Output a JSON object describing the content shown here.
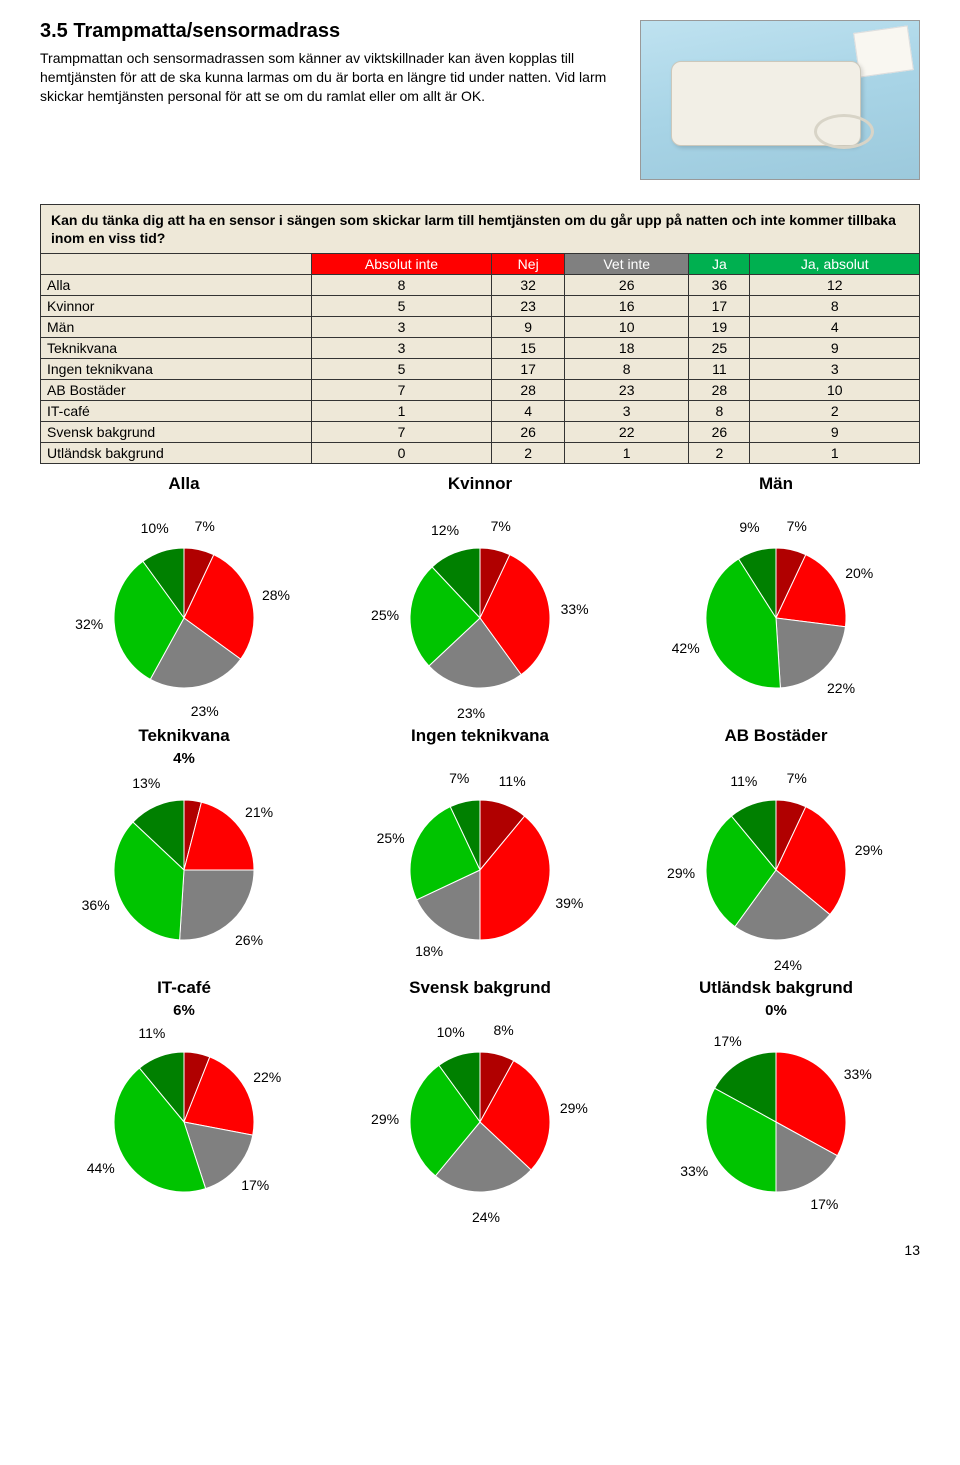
{
  "heading": "3.5 Trampmatta/sensormadrass",
  "intro_text": "Trampmattan och sensormadrassen som känner av viktskillnader kan även kopplas till hemtjänsten för att de ska kunna larmas om du är borta en längre tid under natten. Vid larm skickar hemtjänsten personal för att se om du ramlat eller om allt är OK.",
  "table": {
    "question": "Kan du tänka dig att ha en sensor i sängen som skickar larm till hemtjänsten om du går upp på natten och inte kommer tillbaka inom en viss tid?",
    "header_labels": [
      "Absolut inte",
      "Nej",
      "Vet inte",
      "Ja",
      "Ja, absolut"
    ],
    "header_colors": [
      "h-red",
      "h-red",
      "h-gray",
      "h-green",
      "h-green"
    ],
    "rows": [
      {
        "label": "Alla",
        "vals": [
          8,
          32,
          26,
          36,
          12
        ]
      },
      {
        "label": "Kvinnor",
        "vals": [
          5,
          23,
          16,
          17,
          8
        ]
      },
      {
        "label": "Män",
        "vals": [
          3,
          9,
          10,
          19,
          4
        ]
      },
      {
        "label": "Teknikvana",
        "vals": [
          3,
          15,
          18,
          25,
          9
        ]
      },
      {
        "label": "Ingen teknikvana",
        "vals": [
          5,
          17,
          8,
          11,
          3
        ]
      },
      {
        "label": "AB Bostäder",
        "vals": [
          7,
          28,
          23,
          28,
          10
        ]
      },
      {
        "label": "IT-café",
        "vals": [
          1,
          4,
          3,
          8,
          2
        ]
      },
      {
        "label": "Svensk bakgrund",
        "vals": [
          7,
          26,
          22,
          26,
          9
        ]
      },
      {
        "label": "Utländsk bakgrund",
        "vals": [
          0,
          2,
          1,
          2,
          1
        ]
      }
    ]
  },
  "pie_colors": {
    "ja_absolut": "#008000",
    "ja": "#00c400",
    "vet_inte": "#808080",
    "nej": "#ff0000",
    "absolut_inte": "#b00000"
  },
  "pie_radius": 70,
  "pie_label_offset": 95,
  "pie_label_fontsize": 14,
  "pie_title_fontsize": 17,
  "pies": [
    {
      "title": "Alla",
      "sub": "",
      "slices": [
        {
          "label": "10%",
          "value": 10,
          "color_key": "ja_absolut"
        },
        {
          "label": "7%",
          "value": 7,
          "color_key": "absolut_inte"
        },
        {
          "label": "28%",
          "value": 28,
          "color_key": "nej"
        },
        {
          "label": "23%",
          "value": 23,
          "color_key": "vet_inte"
        },
        {
          "label": "32%",
          "value": 32,
          "color_key": "ja"
        }
      ]
    },
    {
      "title": "Kvinnor",
      "sub": "",
      "slices": [
        {
          "label": "12%",
          "value": 12,
          "color_key": "ja_absolut"
        },
        {
          "label": "7%",
          "value": 7,
          "color_key": "absolut_inte"
        },
        {
          "label": "33%",
          "value": 33,
          "color_key": "nej"
        },
        {
          "label": "23%",
          "value": 23,
          "color_key": "vet_inte"
        },
        {
          "label": "25%",
          "value": 25,
          "color_key": "ja"
        }
      ]
    },
    {
      "title": "Män",
      "sub": "",
      "slices": [
        {
          "label": "9%",
          "value": 9,
          "color_key": "ja_absolut"
        },
        {
          "label": "7%",
          "value": 7,
          "color_key": "absolut_inte"
        },
        {
          "label": "20%",
          "value": 20,
          "color_key": "nej"
        },
        {
          "label": "22%",
          "value": 22,
          "color_key": "vet_inte"
        },
        {
          "label": "42%",
          "value": 42,
          "color_key": "ja"
        }
      ]
    },
    {
      "title": "Teknikvana",
      "sub": "4%",
      "slices": [
        {
          "label": "13%",
          "value": 13,
          "color_key": "ja_absolut"
        },
        {
          "label": "",
          "value": 4,
          "color_key": "absolut_inte"
        },
        {
          "label": "21%",
          "value": 21,
          "color_key": "nej"
        },
        {
          "label": "26%",
          "value": 26,
          "color_key": "vet_inte"
        },
        {
          "label": "36%",
          "value": 36,
          "color_key": "ja"
        }
      ]
    },
    {
      "title": "Ingen teknikvana",
      "sub": "",
      "slices": [
        {
          "label": "7%",
          "value": 7,
          "color_key": "ja_absolut"
        },
        {
          "label": "11%",
          "value": 11,
          "color_key": "absolut_inte"
        },
        {
          "label": "39%",
          "value": 39,
          "color_key": "nej"
        },
        {
          "label": "18%",
          "value": 18,
          "color_key": "vet_inte"
        },
        {
          "label": "25%",
          "value": 25,
          "color_key": "ja"
        }
      ]
    },
    {
      "title": "AB Bostäder",
      "sub": "",
      "slices": [
        {
          "label": "11%",
          "value": 11,
          "color_key": "ja_absolut"
        },
        {
          "label": "7%",
          "value": 7,
          "color_key": "absolut_inte"
        },
        {
          "label": "29%",
          "value": 29,
          "color_key": "nej"
        },
        {
          "label": "24%",
          "value": 24,
          "color_key": "vet_inte"
        },
        {
          "label": "29%",
          "value": 29,
          "color_key": "ja"
        }
      ]
    },
    {
      "title": "IT-café",
      "sub": "6%",
      "slices": [
        {
          "label": "11%",
          "value": 11,
          "color_key": "ja_absolut"
        },
        {
          "label": "",
          "value": 6,
          "color_key": "absolut_inte"
        },
        {
          "label": "22%",
          "value": 22,
          "color_key": "nej"
        },
        {
          "label": "17%",
          "value": 17,
          "color_key": "vet_inte"
        },
        {
          "label": "44%",
          "value": 44,
          "color_key": "ja"
        }
      ]
    },
    {
      "title": "Svensk bakgrund",
      "sub": "",
      "slices": [
        {
          "label": "10%",
          "value": 10,
          "color_key": "ja_absolut"
        },
        {
          "label": "8%",
          "value": 8,
          "color_key": "absolut_inte"
        },
        {
          "label": "29%",
          "value": 29,
          "color_key": "nej"
        },
        {
          "label": "24%",
          "value": 24,
          "color_key": "vet_inte"
        },
        {
          "label": "29%",
          "value": 29,
          "color_key": "ja"
        }
      ]
    },
    {
      "title": "Utländsk bakgrund",
      "sub": "0%",
      "slices": [
        {
          "label": "17%",
          "value": 17,
          "color_key": "ja_absolut"
        },
        {
          "label": "",
          "value": 0,
          "color_key": "absolut_inte"
        },
        {
          "label": "33%",
          "value": 33,
          "color_key": "nej"
        },
        {
          "label": "17%",
          "value": 17,
          "color_key": "vet_inte"
        },
        {
          "label": "33%",
          "value": 33,
          "color_key": "ja"
        }
      ]
    }
  ],
  "page_number": "13"
}
